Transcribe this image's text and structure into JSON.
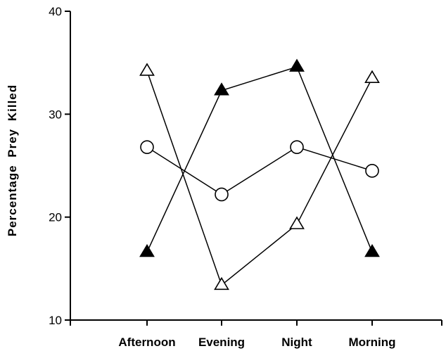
{
  "chart_data": {
    "type": "line",
    "title": "",
    "xlabel": "",
    "ylabel": "Percentage Prey Killed",
    "categories": [
      "Afternoon",
      "Evening",
      "Night",
      "Morning"
    ],
    "ylim": [
      10,
      40
    ],
    "yticks": [
      10,
      20,
      30,
      40
    ],
    "grid": false,
    "legend": "none",
    "series": [
      {
        "marker": "open-triangle",
        "values": [
          34.2,
          13.4,
          19.3,
          33.5
        ]
      },
      {
        "marker": "filled-triangle",
        "values": [
          16.6,
          32.3,
          34.6,
          16.6
        ]
      },
      {
        "marker": "open-circle",
        "values": [
          26.8,
          22.2,
          26.8,
          24.5
        ]
      }
    ]
  }
}
